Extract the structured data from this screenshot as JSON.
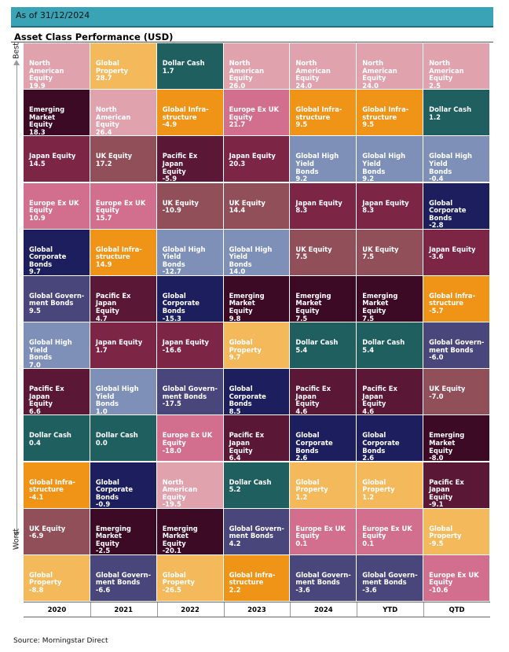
{
  "header": {
    "as_of": "As of 31/12/2024"
  },
  "chart_data": {
    "type": "table",
    "title": "Asset Class Performance (USD)",
    "axis_top": "Best",
    "axis_bottom": "Worst",
    "source": "Source: Morningstar Direct",
    "columns": [
      {
        "year": "2020",
        "cells": [
          {
            "name": "North American\nEquity",
            "value": "19.9"
          },
          {
            "name": "Emerging Market\nEquity",
            "value": "18.3"
          },
          {
            "name": "Japan Equity",
            "value": "14.5"
          },
          {
            "name": "Europe Ex UK\nEquity",
            "value": "10.9"
          },
          {
            "name": "Global Corporate\nBonds",
            "value": "9.7"
          },
          {
            "name": "Global Govern-\nment Bonds",
            "value": "9.5"
          },
          {
            "name": "Global High Yield\nBonds",
            "value": "7.0"
          },
          {
            "name": "Pacific Ex Japan\nEquity",
            "value": "6.6"
          },
          {
            "name": "Dollar Cash",
            "value": "0.4"
          },
          {
            "name": "Global Infra-\nstructure",
            "value": "-4.1"
          },
          {
            "name": "UK Equity",
            "value": "-6.9"
          },
          {
            "name": "Global Property",
            "value": "-8.8"
          }
        ]
      },
      {
        "year": "2021",
        "cells": [
          {
            "name": "Global Property",
            "value": "28.7"
          },
          {
            "name": "North American\nEquity",
            "value": "26.4"
          },
          {
            "name": "UK Equity",
            "value": "17.2"
          },
          {
            "name": "Europe Ex UK\nEquity",
            "value": "15.7"
          },
          {
            "name": "Global Infra-\nstructure",
            "value": "14.9"
          },
          {
            "name": "Pacific Ex Japan\nEquity",
            "value": "4.7"
          },
          {
            "name": "Japan Equity",
            "value": "1.7"
          },
          {
            "name": "Global High Yield\nBonds",
            "value": "1.0"
          },
          {
            "name": "Dollar Cash",
            "value": "0.0"
          },
          {
            "name": "Global Corporate\nBonds",
            "value": "-0.9"
          },
          {
            "name": "Emerging Market\nEquity",
            "value": "-2.5"
          },
          {
            "name": "Global Govern-\nment Bonds",
            "value": "-6.6"
          }
        ]
      },
      {
        "year": "2022",
        "cells": [
          {
            "name": "Dollar Cash",
            "value": "1.7"
          },
          {
            "name": "Global Infra-\nstructure",
            "value": "-4.9"
          },
          {
            "name": "Pacific Ex Japan\nEquity",
            "value": "-5.9"
          },
          {
            "name": "UK Equity",
            "value": "-10.9"
          },
          {
            "name": "Global High Yield\nBonds",
            "value": "-12.7"
          },
          {
            "name": "Global Corporate\nBonds",
            "value": "-15.3"
          },
          {
            "name": "Japan Equity",
            "value": "-16.6"
          },
          {
            "name": "Global Govern-\nment Bonds",
            "value": "-17.5"
          },
          {
            "name": "Europe Ex UK\nEquity",
            "value": "-18.0"
          },
          {
            "name": "North American\nEquity",
            "value": "-19.5"
          },
          {
            "name": "Emerging Market\nEquity",
            "value": "-20.1"
          },
          {
            "name": "Global Property",
            "value": "-26.5"
          }
        ]
      },
      {
        "year": "2023",
        "cells": [
          {
            "name": "North American\nEquity",
            "value": "26.0"
          },
          {
            "name": "Europe Ex UK\nEquity",
            "value": "21.7"
          },
          {
            "name": "Japan Equity",
            "value": "20.3"
          },
          {
            "name": "UK Equity",
            "value": "14.4"
          },
          {
            "name": "Global High Yield\nBonds",
            "value": "14.0"
          },
          {
            "name": "Emerging Market\nEquity",
            "value": "9.8"
          },
          {
            "name": "Global Property",
            "value": "9.7"
          },
          {
            "name": "Global Corporate\nBonds",
            "value": "8.5"
          },
          {
            "name": "Pacific Ex Japan\nEquity",
            "value": "6.4"
          },
          {
            "name": "Dollar Cash",
            "value": "5.2"
          },
          {
            "name": "Global Govern-\nment Bonds",
            "value": "4.2"
          },
          {
            "name": "Global Infra-\nstructure",
            "value": "2.2"
          }
        ]
      },
      {
        "year": "2024",
        "cells": [
          {
            "name": "North American\nEquity",
            "value": "24.0"
          },
          {
            "name": "Global Infra-\nstructure",
            "value": "9.5"
          },
          {
            "name": "Global High Yield\nBonds",
            "value": "9.2"
          },
          {
            "name": "Japan Equity",
            "value": "8.3"
          },
          {
            "name": "UK Equity",
            "value": "7.5"
          },
          {
            "name": "Emerging Market\nEquity",
            "value": "7.5"
          },
          {
            "name": "Dollar Cash",
            "value": "5.4"
          },
          {
            "name": "Pacific Ex Japan\nEquity",
            "value": "4.6"
          },
          {
            "name": "Global Corporate\nBonds",
            "value": "2.6"
          },
          {
            "name": "Global Property",
            "value": "1.2"
          },
          {
            "name": "Europe Ex UK\nEquity",
            "value": "0.1"
          },
          {
            "name": "Global Govern-\nment Bonds",
            "value": "-3.6"
          }
        ]
      },
      {
        "year": "YTD",
        "cells": [
          {
            "name": "North American\nEquity",
            "value": "24.0"
          },
          {
            "name": "Global Infra-\nstructure",
            "value": "9.5"
          },
          {
            "name": "Global High Yield\nBonds",
            "value": "9.2"
          },
          {
            "name": "Japan Equity",
            "value": "8.3"
          },
          {
            "name": "UK Equity",
            "value": "7.5"
          },
          {
            "name": "Emerging Market\nEquity",
            "value": "7.5"
          },
          {
            "name": "Dollar Cash",
            "value": "5.4"
          },
          {
            "name": "Pacific Ex Japan\nEquity",
            "value": "4.6"
          },
          {
            "name": "Global Corporate\nBonds",
            "value": "2.6"
          },
          {
            "name": "Global Property",
            "value": "1.2"
          },
          {
            "name": "Europe Ex UK\nEquity",
            "value": "0.1"
          },
          {
            "name": "Global Govern-\nment Bonds",
            "value": "-3.6"
          }
        ]
      },
      {
        "year": "QTD",
        "cells": [
          {
            "name": "North American\nEquity",
            "value": "2.5"
          },
          {
            "name": "Dollar Cash",
            "value": "1.2"
          },
          {
            "name": "Global High Yield\nBonds",
            "value": "-0.4"
          },
          {
            "name": "Global Corporate\nBonds",
            "value": "-2.8"
          },
          {
            "name": "Japan Equity",
            "value": "-3.6"
          },
          {
            "name": "Global Infra-\nstructure",
            "value": "-5.7"
          },
          {
            "name": "Global Govern-\nment Bonds",
            "value": "-6.0"
          },
          {
            "name": "UK Equity",
            "value": "-7.0"
          },
          {
            "name": "Emerging Market\nEquity",
            "value": "-8.0"
          },
          {
            "name": "Pacific Ex Japan\nEquity",
            "value": "-9.1"
          },
          {
            "name": "Global Property",
            "value": "-9.5"
          },
          {
            "name": "Europe Ex UK\nEquity",
            "value": "-10.6"
          }
        ]
      }
    ],
    "colors": {
      "North American Equity": "#e0a3ae",
      "Emerging Market Equity": "#3c0a25",
      "Japan Equity": "#7d2545",
      "Europe Ex UK Equity": "#d36f8e",
      "Global Corporate Bonds": "#1c1e5e",
      "Global Government Bonds": "#48467a",
      "Global High Yield Bonds": "#7e90b8",
      "Pacific Ex Japan Equity": "#5a1736",
      "Dollar Cash": "#1f5f5f",
      "Global Infrastructure": "#ef9416",
      "UK Equity": "#914f5a",
      "Global Property": "#f4b95a"
    }
  }
}
